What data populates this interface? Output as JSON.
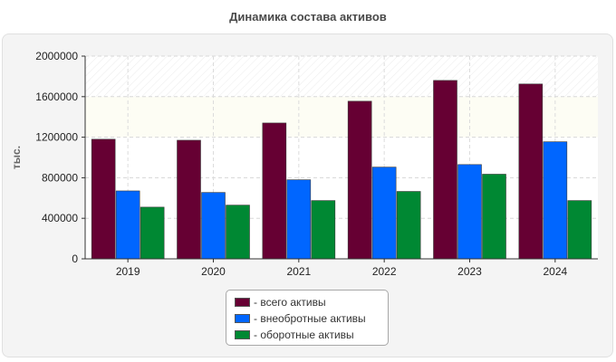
{
  "chart_data": {
    "type": "bar",
    "title": "Динамика состава активов",
    "xlabel": "",
    "ylabel": "тыс.",
    "ylim": [
      0,
      2000000
    ],
    "yticks": [
      "0",
      "400000",
      "800000",
      "1200000",
      "1600000",
      "2000000"
    ],
    "categories": [
      "2019",
      "2020",
      "2021",
      "2022",
      "2023",
      "2024"
    ],
    "series": [
      {
        "name": "- всего активы",
        "color": "#660033",
        "values": [
          1180000,
          1170000,
          1340000,
          1555000,
          1760000,
          1725000
        ]
      },
      {
        "name": "- внеобротные активы",
        "color": "#0066ff",
        "values": [
          670000,
          655000,
          780000,
          905000,
          930000,
          1155000
        ]
      },
      {
        "name": "- оборотные активы",
        "color": "#008833",
        "values": [
          510000,
          530000,
          575000,
          665000,
          835000,
          575000
        ]
      }
    ],
    "grid": true,
    "legend_position": "bottom-center"
  }
}
